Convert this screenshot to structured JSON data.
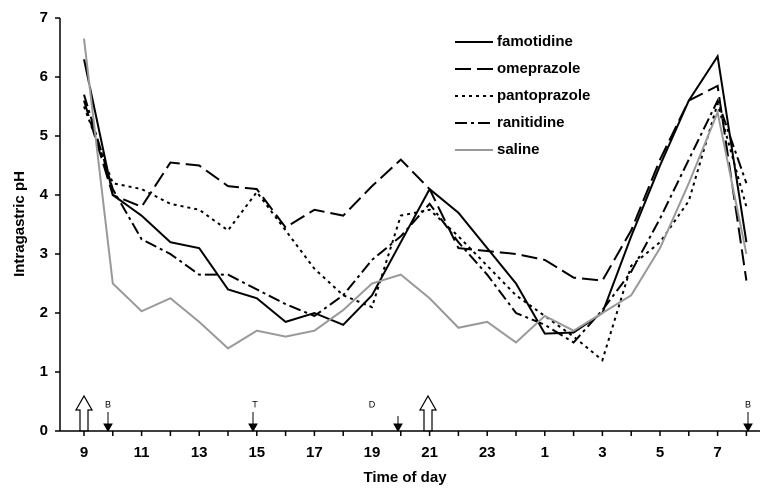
{
  "chart_data": {
    "type": "line",
    "xlabel": "Time of day",
    "ylabel": "Intragastric pH",
    "categories": [
      "9",
      null,
      "11",
      null,
      "13",
      null,
      "15",
      null,
      "17",
      null,
      "19",
      null,
      "21",
      null,
      "23",
      null,
      "1",
      null,
      "3",
      null,
      "5",
      null,
      "7",
      null
    ],
    "ylim": [
      0,
      7
    ],
    "yticks": [
      0,
      1,
      2,
      3,
      4,
      5,
      6,
      7
    ],
    "legend": "upper right",
    "annotations": [
      "B",
      "T",
      "D",
      "B"
    ],
    "series": [
      {
        "name": "famotidine",
        "color": "#000000",
        "values": [
          6.3,
          4.0,
          3.65,
          3.2,
          3.1,
          2.4,
          2.25,
          1.85,
          2.0,
          1.8,
          2.3,
          3.2,
          4.1,
          3.7,
          3.1,
          2.5,
          1.65,
          1.67,
          2.0,
          3.3,
          4.5,
          5.6,
          6.35,
          3.2
        ]
      },
      {
        "name": "omeprazole",
        "color": "#000000",
        "values": [
          5.6,
          4.0,
          3.8,
          4.55,
          4.5,
          4.15,
          4.1,
          3.45,
          3.75,
          3.65,
          4.15,
          4.6,
          4.1,
          3.1,
          3.05,
          3.0,
          2.9,
          2.6,
          2.55,
          3.4,
          4.6,
          5.6,
          5.85,
          2.55
        ]
      },
      {
        "name": "pantoprazole",
        "color": "#000000",
        "values": [
          5.5,
          4.2,
          4.1,
          3.85,
          3.75,
          3.4,
          4.05,
          3.4,
          2.75,
          2.3,
          2.1,
          3.65,
          3.75,
          3.3,
          2.8,
          2.3,
          1.95,
          1.6,
          1.2,
          2.8,
          3.2,
          3.9,
          5.55,
          3.8
        ]
      },
      {
        "name": "ranitidine",
        "color": "#000000",
        "values": [
          5.7,
          4.1,
          3.25,
          3.0,
          2.65,
          2.65,
          2.4,
          2.15,
          1.95,
          2.3,
          2.9,
          3.3,
          3.85,
          3.2,
          2.65,
          2.0,
          1.8,
          1.5,
          2.05,
          2.7,
          3.6,
          4.6,
          5.6,
          4.2
        ]
      },
      {
        "name": "saline",
        "color": "#999999",
        "values": [
          6.65,
          2.5,
          2.03,
          2.25,
          1.85,
          1.4,
          1.7,
          1.6,
          1.7,
          2.05,
          2.5,
          2.65,
          2.25,
          1.75,
          1.85,
          1.5,
          1.95,
          1.7,
          2.0,
          2.3,
          3.1,
          4.2,
          5.4,
          3.0
        ]
      }
    ]
  }
}
